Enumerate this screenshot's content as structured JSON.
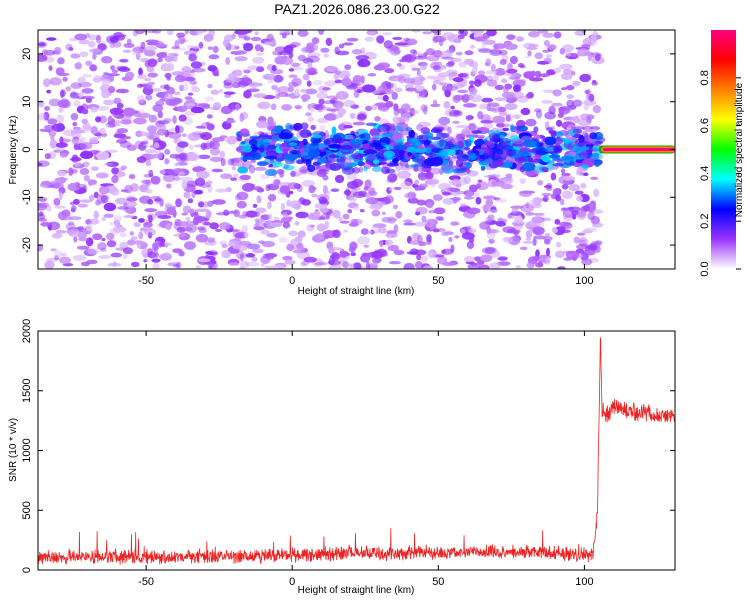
{
  "title": "PAZ1.2026.086.23.00.G22",
  "chart_data": [
    {
      "type": "heatmap",
      "xlabel": "Height of straight line (km)",
      "ylabel": "Frequency (Hz)",
      "xlim": [
        -87,
        131
      ],
      "ylim": [
        -25,
        25
      ],
      "x_ticks": [
        -50,
        0,
        50,
        100
      ],
      "x_tick_labels": [
        "-50",
        "0",
        "50",
        "100"
      ],
      "y_ticks": [
        -20,
        -10,
        0,
        10,
        20
      ],
      "y_tick_labels": [
        "-20",
        "-10",
        "0",
        "10",
        "20"
      ],
      "colorbar": {
        "label": "Normalized spectral amplitude",
        "range": [
          0,
          1
        ],
        "ticks": [
          0,
          0.2,
          0.4,
          0.6,
          0.8
        ],
        "tick_labels": [
          "0.0",
          "0.2",
          "0.4",
          "0.6",
          "0.8"
        ],
        "colors": [
          "#ffffff",
          "#9933ff",
          "#0000ff",
          "#00ffff",
          "#00ff00",
          "#ffff00",
          "#ff8000",
          "#ff0000",
          "#ff0080"
        ]
      },
      "features": [
        {
          "description_of_region": "scattered noise",
          "x_range": [
            -87,
            105
          ],
          "y_range": [
            -25,
            25
          ],
          "amplitude": 0.1
        },
        {
          "description_of_region": "band near zero frequency",
          "x_range": [
            -18,
            105
          ],
          "y_range": [
            -6,
            6
          ],
          "amplitude": 0.25
        },
        {
          "description_of_region": "strong line at zero frequency",
          "x_range": [
            105,
            131
          ],
          "y_range": [
            -0.5,
            0.5
          ],
          "amplitude": 1.0
        }
      ]
    },
    {
      "type": "line",
      "xlabel": "Height of straight line (km)",
      "ylabel": "SNR (10 * v/v)",
      "xlim": [
        -87,
        131
      ],
      "ylim": [
        0,
        2000
      ],
      "x_ticks": [
        -50,
        0,
        50,
        100
      ],
      "x_tick_labels": [
        "-50",
        "0",
        "50",
        "100"
      ],
      "y_ticks": [
        0,
        500,
        1000,
        1500,
        2000
      ],
      "y_tick_labels": [
        "0",
        "500",
        "1000",
        "1500",
        "2000"
      ],
      "series": [
        {
          "color": "#ee2222",
          "x": [
            -87,
            -70,
            -50,
            -30,
            -10,
            0,
            20,
            40,
            60,
            80,
            95,
            100,
            103,
            104.5,
            105.5,
            106,
            107,
            110,
            115,
            120,
            125,
            131
          ],
          "y": [
            110,
            110,
            110,
            110,
            115,
            125,
            140,
            140,
            150,
            150,
            140,
            125,
            130,
            500,
            2000,
            1350,
            1300,
            1370,
            1330,
            1320,
            1300,
            1280
          ],
          "noise_amplitude": 70
        }
      ]
    }
  ]
}
